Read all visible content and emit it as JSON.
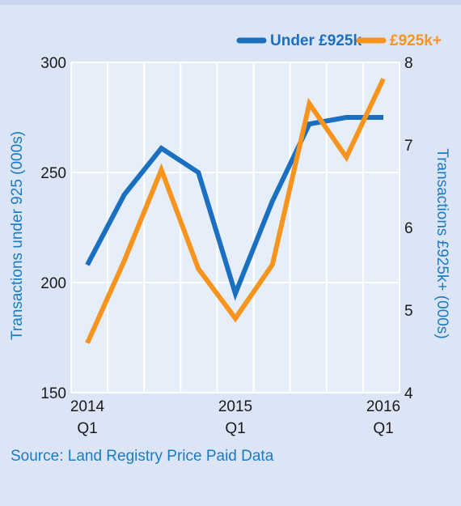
{
  "chart_data": {
    "type": "line",
    "x_labels": [
      {
        "year": "2014",
        "quarter": "Q1"
      },
      {
        "year": "",
        "quarter": ""
      },
      {
        "year": "",
        "quarter": ""
      },
      {
        "year": "",
        "quarter": ""
      },
      {
        "year": "2015",
        "quarter": "Q1"
      },
      {
        "year": "",
        "quarter": ""
      },
      {
        "year": "",
        "quarter": ""
      },
      {
        "year": "",
        "quarter": ""
      },
      {
        "year": "2016",
        "quarter": "Q1"
      }
    ],
    "series": [
      {
        "name": "Under £925k",
        "axis": "left",
        "color": "#1a6fc0",
        "values": [
          208,
          240,
          261,
          250,
          195,
          237,
          272,
          275,
          275
        ]
      },
      {
        "name": "£925k+",
        "axis": "right",
        "color": "#f7941d",
        "values": [
          4.6,
          5.6,
          6.7,
          5.5,
          4.9,
          5.55,
          7.5,
          6.85,
          7.8
        ]
      }
    ],
    "ylabel_left": "Transactions under 925 (000s)",
    "ylabel_right": "Transactions £925k+ (000s)",
    "ylim_left": [
      150,
      300
    ],
    "yticks_left": [
      150,
      200,
      250,
      300
    ],
    "ylim_right": [
      4,
      8
    ],
    "yticks_right": [
      4,
      5,
      6,
      7,
      8
    ],
    "grid": true,
    "legend_position": "top-right"
  },
  "source": "Source: Land Registry Price Paid Data",
  "colors": {
    "background": "#dbe5f6",
    "plot_area": "#e6eef9",
    "grid": "#ffffff",
    "axis_text": "#1a1a1a",
    "axis_title": "#1a7bc4"
  }
}
